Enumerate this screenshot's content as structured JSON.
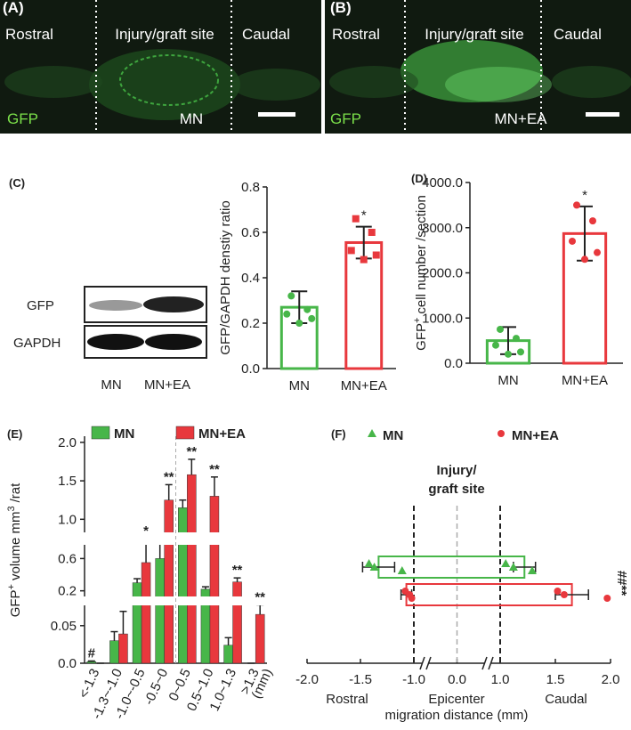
{
  "panels": {
    "A": {
      "label": "(A)",
      "regions": [
        "Rostral",
        "Injury/graft site",
        "Caudal"
      ],
      "stain": "GFP",
      "group": "MN"
    },
    "B": {
      "label": "(B)",
      "regions": [
        "Rostral",
        "Injury/graft site",
        "Caudal"
      ],
      "stain": "GFP",
      "group": "MN+EA"
    },
    "blot": {
      "label": "(C)",
      "rows": [
        "GFP",
        "GAPDH"
      ],
      "lanes": [
        "MN",
        "MN+EA"
      ]
    }
  },
  "chart_data": [
    {
      "type": "bar",
      "y_label": [
        {
          "text": "GFP/GAPDH denstiy ratio"
        }
      ],
      "categories": [
        "MN",
        "MN+EA"
      ],
      "values": [
        0.27,
        0.555
      ],
      "errors": [
        0.07,
        0.07
      ],
      "colors": [
        "#47b649",
        "#e8383d"
      ],
      "markers": [
        "circle",
        "square"
      ],
      "points": [
        [
          0.32,
          0.26,
          0.24,
          0.22,
          0.2
        ],
        [
          0.66,
          0.6,
          0.52,
          0.5,
          0.48
        ]
      ],
      "annotations": [
        null,
        "*"
      ],
      "ylim": [
        0,
        0.8
      ],
      "yticks": [
        {
          "value": 0,
          "label": "0.0"
        },
        0.2,
        0.4,
        0.6,
        0.8
      ]
    },
    {
      "type": "bar",
      "label": "(D)",
      "y_label": [
        {
          "text": "GFP"
        },
        {
          "text": "+",
          "sup": true
        },
        {
          "text": "cell number /section"
        }
      ],
      "categories": [
        "MN",
        "MN+EA"
      ],
      "values": [
        500,
        2870
      ],
      "errors": [
        300,
        600
      ],
      "colors": [
        "#47b649",
        "#e8383d"
      ],
      "markers": [
        "circle",
        "circle"
      ],
      "points": [
        [
          750,
          550,
          400,
          250,
          200
        ],
        [
          3500,
          3150,
          2700,
          2450,
          2300
        ]
      ],
      "annotations": [
        null,
        "*"
      ],
      "ylim": [
        0,
        4000
      ],
      "yticks": [
        {
          "value": 0,
          "label": "0.0"
        },
        {
          "value": 1000,
          "label": "1000.0"
        },
        {
          "value": 2000,
          "label": "2000.0"
        },
        {
          "value": 3000,
          "label": "3000.0"
        },
        {
          "value": 4000,
          "label": "4000.0"
        }
      ]
    },
    {
      "type": "broken_axis_bar",
      "label": "(E)",
      "y_label": [
        {
          "text": "GFP"
        },
        {
          "text": "+",
          "sup": true
        },
        {
          "text": "volume mm"
        },
        {
          "text": "3",
          "sup": true
        },
        {
          "text": "/rat"
        }
      ],
      "x_label": "(mm)",
      "categories": [
        "<-1.3",
        "-1.3~-1.0",
        "-1.0~-0.5",
        "-0.5~0",
        "0~0.5",
        "0.5~1.0",
        "1.0~1.3",
        ">1.3"
      ],
      "series": [
        {
          "name": "MN",
          "color": "#47b649",
          "values": [
            0.002,
            0.03,
            0.3,
            0.6,
            1.15,
            0.22,
            0.024,
            0
          ],
          "errors": [
            0.001,
            0.012,
            0.05,
            0.2,
            0.1,
            0.03,
            0.01,
            0
          ]
        },
        {
          "name": "MN+EA",
          "color": "#e8383d",
          "values": [
            0,
            0.039,
            0.55,
            1.25,
            1.58,
            1.3,
            0.31,
            0.065
          ],
          "errors": [
            0,
            0.03,
            0.25,
            0.2,
            0.2,
            0.25,
            0.05,
            0.015
          ]
        }
      ],
      "annotations": [
        "#",
        null,
        "*",
        "**",
        "**",
        "**",
        "**",
        "**"
      ],
      "y_segments": [
        {
          "ylim": [
            0,
            0.077
          ],
          "yticks": [
            {
              "value": 0,
              "label": "0.0"
            },
            0.05
          ]
        },
        {
          "ylim": [
            0.13,
            0.77
          ],
          "yticks": [
            0.2,
            0.6
          ]
        },
        {
          "ylim": [
            0.83,
            2.08
          ],
          "yticks": [
            {
              "value": 1,
              "label": "1.0"
            },
            1.5,
            {
              "value": 2,
              "label": "2.0"
            }
          ]
        }
      ]
    },
    {
      "type": "range_bar",
      "label": "(F)",
      "x_label": "migration distance (mm)",
      "region_labels": [
        "Rostral",
        "Epicenter",
        "Caudal"
      ],
      "site_label": [
        "Injury/",
        "graft site"
      ],
      "series": [
        {
          "name": "MN",
          "color": "#47b649",
          "marker": "triangle",
          "values": [
            -1.33,
            1.22
          ],
          "errors": [
            0.15,
            0.1
          ],
          "points": [
            [
              -1.42,
              -1.37,
              -1.11
            ],
            [
              1.05,
              1.12,
              1.29
            ]
          ]
        },
        {
          "name": "MN+EA",
          "color": "#e8383d",
          "marker": "circle",
          "values": [
            -1.07,
            1.65
          ],
          "errors": [
            0.05,
            0.15
          ],
          "points": [
            [
              -1.08,
              -1.04,
              -1.02
            ],
            [
              1.52,
              1.58,
              1.97
            ]
          ]
        }
      ],
      "annotation": "##**",
      "x_segments": [
        {
          "xlim": [
            -2,
            -1
          ]
        },
        {
          "xlim": [
            -1,
            1
          ]
        },
        {
          "xlim": [
            1,
            2
          ]
        }
      ],
      "xticks": [
        {
          "value": -2,
          "label": "-2.0"
        },
        -1.5,
        {
          "value": -1,
          "label": "-1.0"
        },
        {
          "value": 0,
          "label": "0.0"
        },
        {
          "value": 1,
          "label": "1.0"
        },
        1.5,
        {
          "value": 2,
          "label": "2.0"
        }
      ]
    }
  ]
}
